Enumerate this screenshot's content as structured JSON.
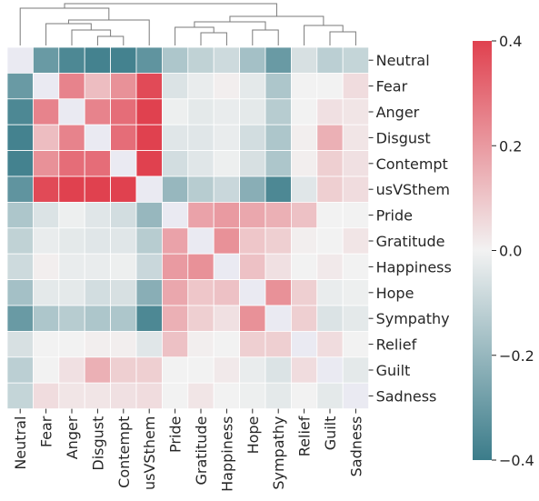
{
  "chart_data": {
    "type": "heatmap",
    "title": "",
    "xlabel": "",
    "ylabel": "",
    "labels": [
      "Neutral",
      "Fear",
      "Anger",
      "Disgust",
      "Contempt",
      "usVSthem",
      "Pride",
      "Gratitude",
      "Happiness",
      "Hope",
      "Sympathy",
      "Relief",
      "Guilt",
      "Sadness"
    ],
    "values": [
      [
        0.0,
        -0.3,
        -0.36,
        -0.38,
        -0.38,
        -0.32,
        -0.15,
        -0.11,
        -0.08,
        -0.17,
        -0.3,
        -0.06,
        -0.12,
        -0.1
      ],
      [
        -0.3,
        0.0,
        0.25,
        0.12,
        0.22,
        0.38,
        -0.05,
        -0.02,
        0.01,
        -0.03,
        -0.15,
        0.0,
        0.0,
        0.05
      ],
      [
        -0.36,
        0.25,
        0.0,
        0.25,
        0.3,
        0.4,
        -0.01,
        -0.03,
        -0.02,
        -0.03,
        -0.13,
        0.0,
        0.04,
        0.03
      ],
      [
        -0.38,
        0.12,
        0.25,
        0.0,
        0.3,
        0.4,
        -0.04,
        -0.04,
        -0.02,
        -0.07,
        -0.15,
        0.01,
        0.15,
        0.03
      ],
      [
        -0.38,
        0.22,
        0.3,
        0.3,
        0.0,
        0.4,
        -0.07,
        -0.04,
        -0.01,
        -0.06,
        -0.15,
        0.01,
        0.08,
        0.04
      ],
      [
        -0.32,
        0.38,
        0.4,
        0.4,
        0.4,
        0.0,
        -0.2,
        -0.13,
        -0.09,
        -0.23,
        -0.36,
        -0.04,
        0.08,
        0.05
      ],
      [
        -0.15,
        -0.05,
        -0.01,
        -0.04,
        -0.07,
        -0.2,
        0.0,
        0.18,
        0.2,
        0.17,
        0.15,
        0.11,
        0.0,
        0.0
      ],
      [
        -0.11,
        -0.02,
        -0.03,
        -0.04,
        -0.04,
        -0.13,
        0.18,
        0.0,
        0.22,
        0.1,
        0.08,
        0.01,
        0.0,
        0.03
      ],
      [
        -0.08,
        0.01,
        -0.02,
        -0.02,
        -0.01,
        -0.09,
        0.2,
        0.22,
        0.0,
        0.11,
        0.04,
        0.0,
        0.02,
        0.0
      ],
      [
        -0.17,
        -0.03,
        -0.03,
        -0.07,
        -0.06,
        -0.23,
        0.17,
        0.1,
        0.11,
        0.0,
        0.22,
        0.08,
        -0.02,
        -0.01
      ],
      [
        -0.3,
        -0.15,
        -0.13,
        -0.15,
        -0.15,
        -0.36,
        0.15,
        0.08,
        0.04,
        0.22,
        0.0,
        0.08,
        -0.05,
        -0.03
      ],
      [
        -0.06,
        0.0,
        0.0,
        0.01,
        0.01,
        -0.04,
        0.11,
        0.01,
        0.0,
        0.08,
        0.08,
        0.0,
        0.05,
        0.0
      ],
      [
        -0.12,
        0.0,
        0.04,
        0.15,
        0.08,
        0.08,
        0.0,
        0.0,
        0.02,
        -0.02,
        -0.05,
        0.05,
        0.0,
        -0.03
      ],
      [
        -0.1,
        0.05,
        0.03,
        0.03,
        0.04,
        0.05,
        0.0,
        0.03,
        0.0,
        -0.01,
        -0.03,
        0.0,
        -0.03,
        0.0
      ]
    ],
    "colorbar": {
      "min": -0.4,
      "max": 0.4,
      "ticks": [
        "0.4",
        "0.2",
        "0.0",
        "−0.2",
        "−0.4"
      ],
      "tick_values": [
        0.4,
        0.2,
        0.0,
        -0.2,
        -0.4
      ],
      "colors": {
        "low": "#3b7c8a",
        "mid": "#f2f2f2",
        "high": "#e0414f"
      }
    },
    "dendrogram": "column clustering, top",
    "grid": false,
    "legend": "colorbar right"
  }
}
